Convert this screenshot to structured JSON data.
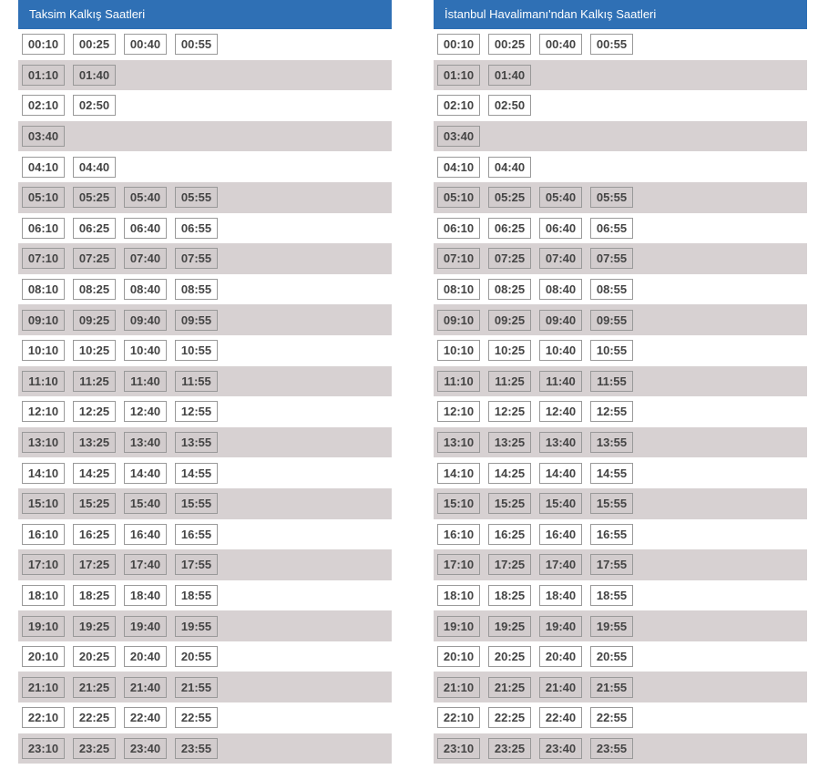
{
  "panels": [
    {
      "title": "Taksim Kalkış Saatleri",
      "rows": [
        [
          "00:10",
          "00:25",
          "00:40",
          "00:55"
        ],
        [
          "01:10",
          "01:40"
        ],
        [
          "02:10",
          "02:50"
        ],
        [
          "03:40"
        ],
        [
          "04:10",
          "04:40"
        ],
        [
          "05:10",
          "05:25",
          "05:40",
          "05:55"
        ],
        [
          "06:10",
          "06:25",
          "06:40",
          "06:55"
        ],
        [
          "07:10",
          "07:25",
          "07:40",
          "07:55"
        ],
        [
          "08:10",
          "08:25",
          "08:40",
          "08:55"
        ],
        [
          "09:10",
          "09:25",
          "09:40",
          "09:55"
        ],
        [
          "10:10",
          "10:25",
          "10:40",
          "10:55"
        ],
        [
          "11:10",
          "11:25",
          "11:40",
          "11:55"
        ],
        [
          "12:10",
          "12:25",
          "12:40",
          "12:55"
        ],
        [
          "13:10",
          "13:25",
          "13:40",
          "13:55"
        ],
        [
          "14:10",
          "14:25",
          "14:40",
          "14:55"
        ],
        [
          "15:10",
          "15:25",
          "15:40",
          "15:55"
        ],
        [
          "16:10",
          "16:25",
          "16:40",
          "16:55"
        ],
        [
          "17:10",
          "17:25",
          "17:40",
          "17:55"
        ],
        [
          "18:10",
          "18:25",
          "18:40",
          "18:55"
        ],
        [
          "19:10",
          "19:25",
          "19:40",
          "19:55"
        ],
        [
          "20:10",
          "20:25",
          "20:40",
          "20:55"
        ],
        [
          "21:10",
          "21:25",
          "21:40",
          "21:55"
        ],
        [
          "22:10",
          "22:25",
          "22:40",
          "22:55"
        ],
        [
          "23:10",
          "23:25",
          "23:40",
          "23:55"
        ]
      ]
    },
    {
      "title": "İstanbul Havalimanı'ndan Kalkış Saatleri",
      "rows": [
        [
          "00:10",
          "00:25",
          "00:40",
          "00:55"
        ],
        [
          "01:10",
          "01:40"
        ],
        [
          "02:10",
          "02:50"
        ],
        [
          "03:40"
        ],
        [
          "04:10",
          "04:40"
        ],
        [
          "05:10",
          "05:25",
          "05:40",
          "05:55"
        ],
        [
          "06:10",
          "06:25",
          "06:40",
          "06:55"
        ],
        [
          "07:10",
          "07:25",
          "07:40",
          "07:55"
        ],
        [
          "08:10",
          "08:25",
          "08:40",
          "08:55"
        ],
        [
          "09:10",
          "09:25",
          "09:40",
          "09:55"
        ],
        [
          "10:10",
          "10:25",
          "10:40",
          "10:55"
        ],
        [
          "11:10",
          "11:25",
          "11:40",
          "11:55"
        ],
        [
          "12:10",
          "12:25",
          "12:40",
          "12:55"
        ],
        [
          "13:10",
          "13:25",
          "13:40",
          "13:55"
        ],
        [
          "14:10",
          "14:25",
          "14:40",
          "14:55"
        ],
        [
          "15:10",
          "15:25",
          "15:40",
          "15:55"
        ],
        [
          "16:10",
          "16:25",
          "16:40",
          "16:55"
        ],
        [
          "17:10",
          "17:25",
          "17:40",
          "17:55"
        ],
        [
          "18:10",
          "18:25",
          "18:40",
          "18:55"
        ],
        [
          "19:10",
          "19:25",
          "19:40",
          "19:55"
        ],
        [
          "20:10",
          "20:25",
          "20:40",
          "20:55"
        ],
        [
          "21:10",
          "21:25",
          "21:40",
          "21:55"
        ],
        [
          "22:10",
          "22:25",
          "22:40",
          "22:55"
        ],
        [
          "23:10",
          "23:25",
          "23:40",
          "23:55"
        ]
      ]
    }
  ],
  "colors": {
    "header": "#2f70b5",
    "alt_row": "#d7d1d2",
    "time_text": "#444444"
  }
}
